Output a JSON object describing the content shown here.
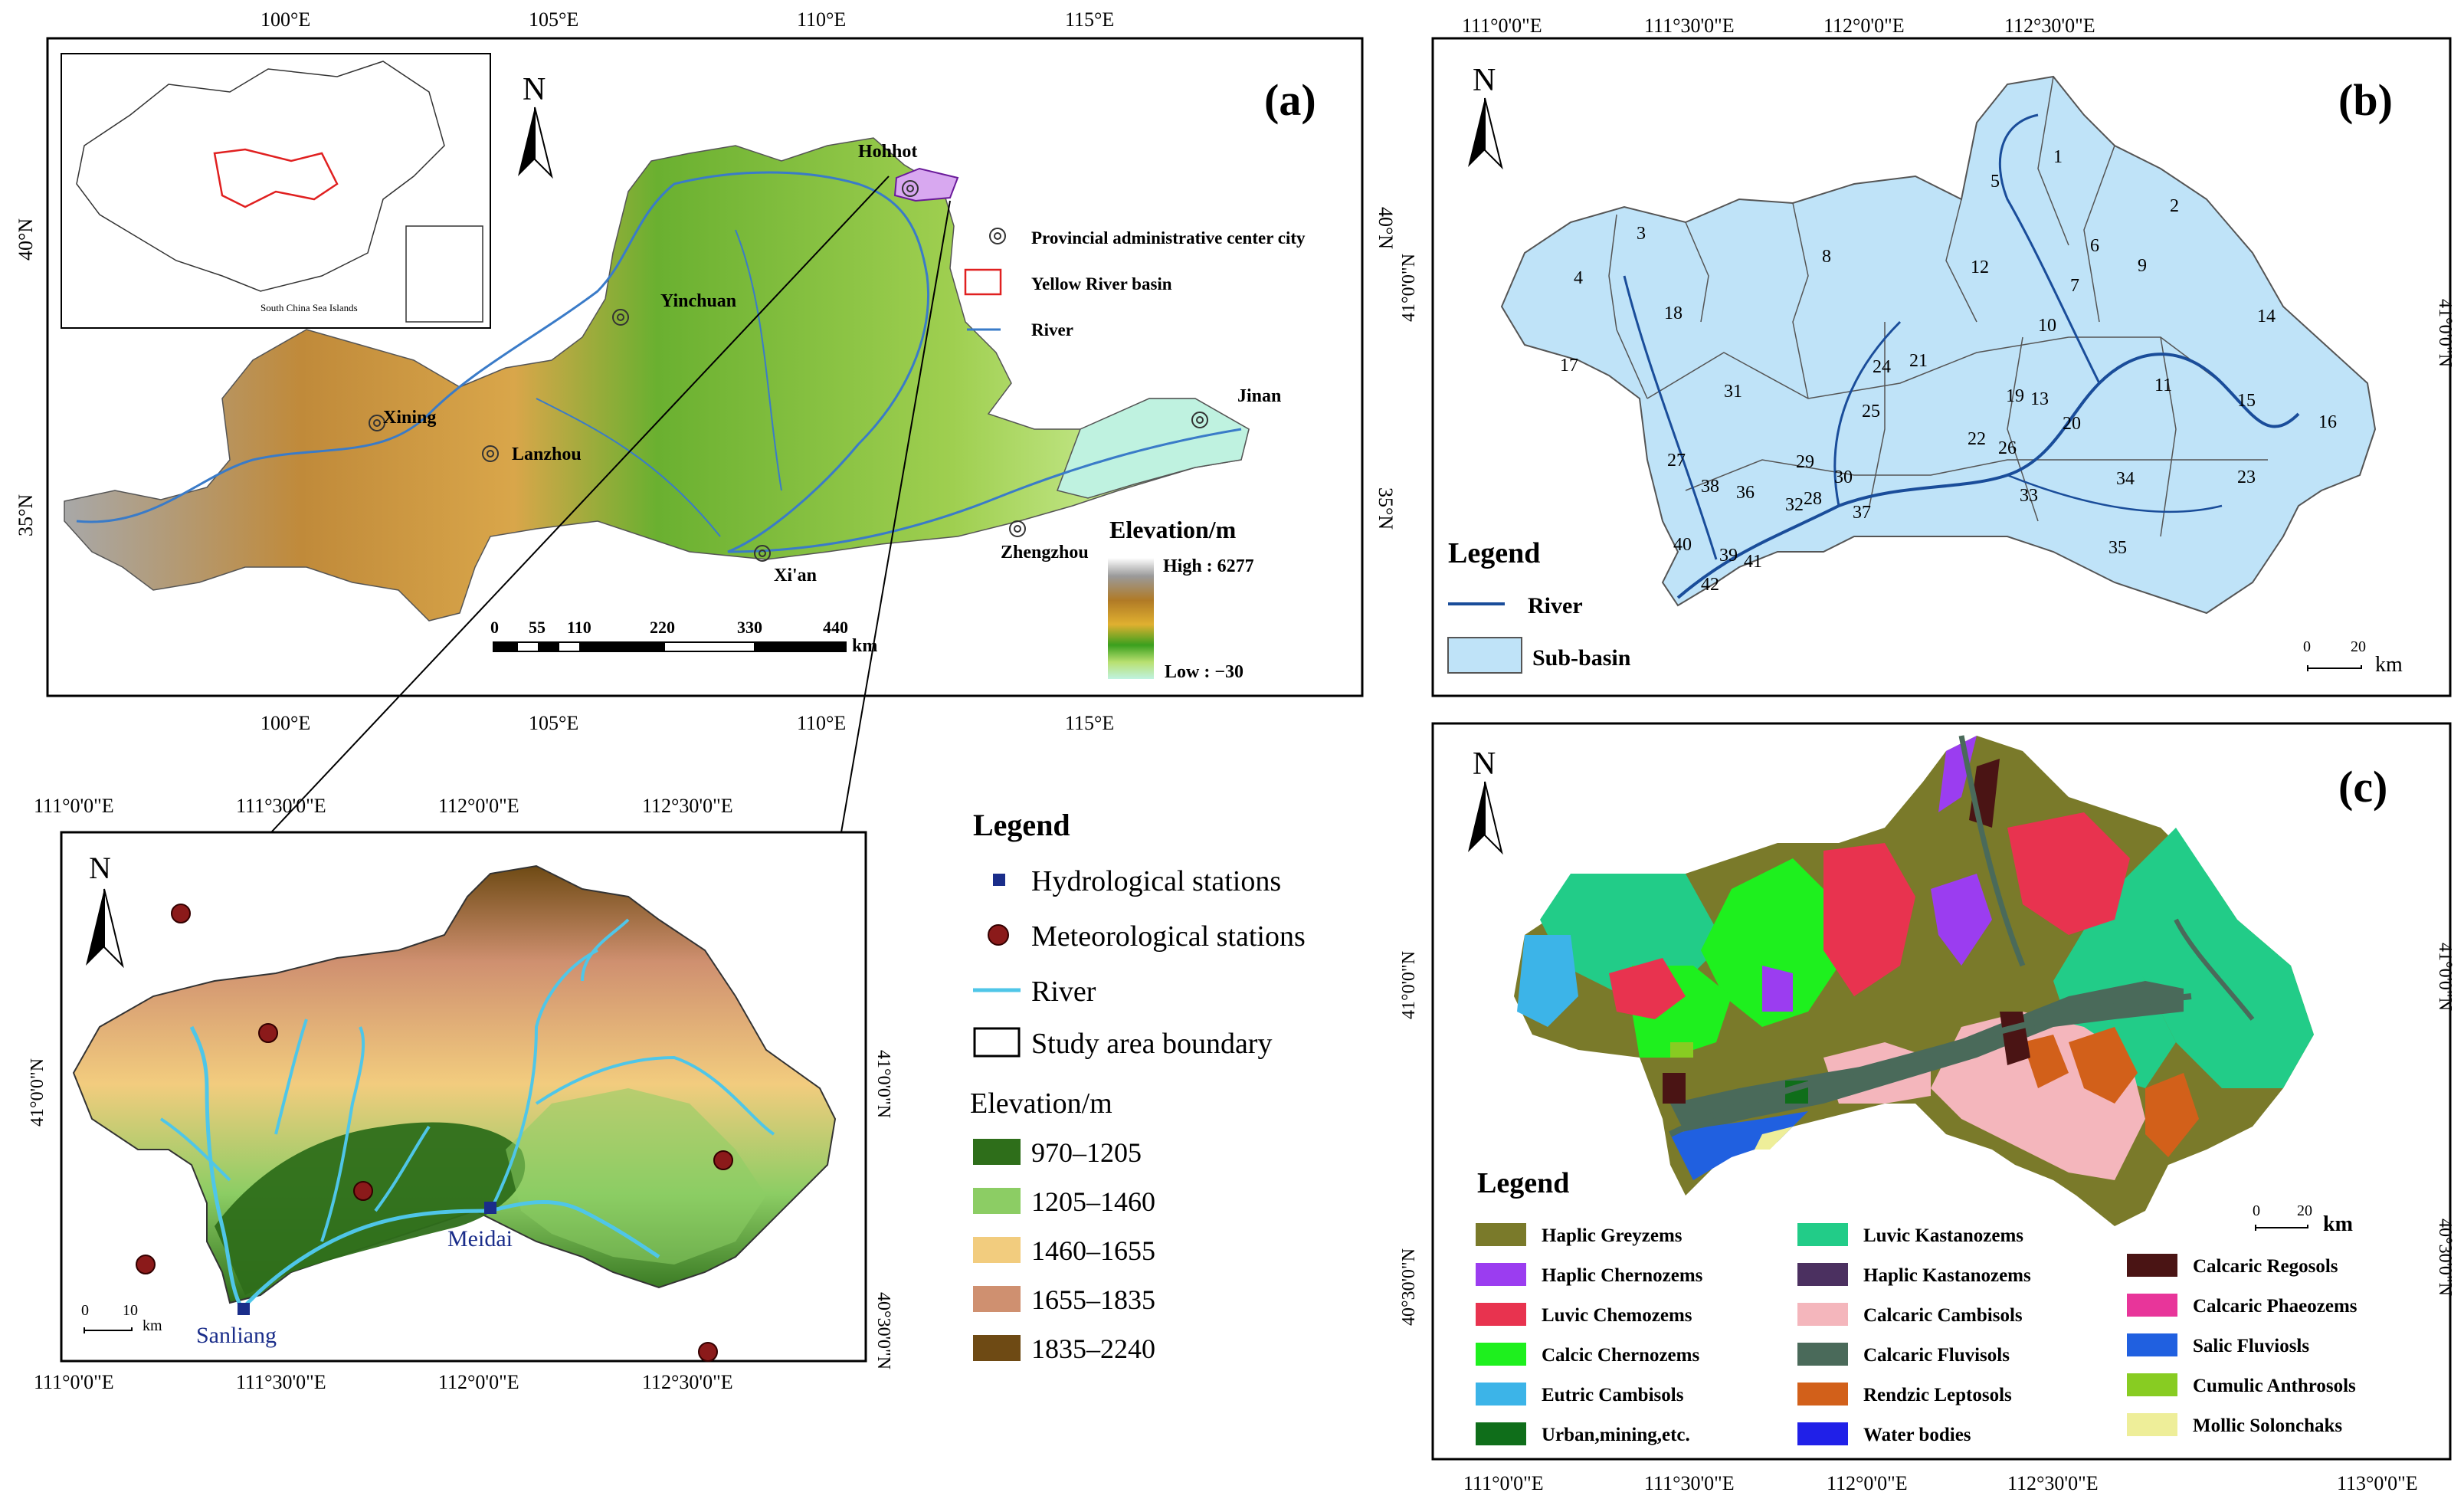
{
  "panel_a": {
    "label": "(a)",
    "north": "N",
    "top_ticks": [
      "100°E",
      "105°E",
      "110°E",
      "115°E"
    ],
    "bottom_ticks": [
      "100°E",
      "105°E",
      "110°E",
      "115°E"
    ],
    "left_ticks": [
      "40°N",
      "35°N"
    ],
    "right_ticks": [
      "40°N",
      "35°N"
    ],
    "cities": [
      "Hohhot",
      "Yinchuan",
      "Xining",
      "Lanzhou",
      "Xi'an",
      "Zhengzhou",
      "Jinan"
    ],
    "legend": {
      "provincial": "Provincial administrative center city",
      "basin": "Yellow River basin",
      "river": "River"
    },
    "inset_text": "South China Sea Islands",
    "elevation": {
      "title": "Elevation/m",
      "high": "High : 6277",
      "low": "Low : −30"
    },
    "scale": {
      "ticks": [
        "0",
        "55",
        "110",
        "220",
        "330",
        "440"
      ],
      "unit": "km"
    }
  },
  "panel_b": {
    "label": "(b)",
    "north": "N",
    "top_ticks": [
      "111°0'0\"E",
      "111°30'0\"E",
      "112°0'0\"E",
      "112°30'0\"E"
    ],
    "right_ticks": [
      "41°0'0\"N"
    ],
    "legend_title": "Legend",
    "legend_river": "River",
    "legend_subbasin": "Sub-basin",
    "scale": {
      "zero": "0",
      "twenty": "20",
      "unit": "km"
    },
    "subbasins": [
      "1",
      "2",
      "3",
      "4",
      "5",
      "6",
      "7",
      "8",
      "9",
      "10",
      "11",
      "12",
      "13",
      "14",
      "15",
      "16",
      "17",
      "18",
      "19",
      "20",
      "21",
      "22",
      "23",
      "24",
      "25",
      "26",
      "27",
      "28",
      "29",
      "30",
      "31",
      "32",
      "33",
      "34",
      "35",
      "36",
      "37",
      "38",
      "39",
      "40",
      "41",
      "42"
    ]
  },
  "panel_c": {
    "label": "(c)",
    "north": "N",
    "bottom_ticks": [
      "111°0'0\"E",
      "111°30'0\"E",
      "112°0'0\"E",
      "112°30'0\"E",
      "113°0'0\"E"
    ],
    "left_ticks": [
      "41°0'0\"N",
      "40°30'0\"N"
    ],
    "right_ticks": [
      "41°0'0\"N",
      "40°30'0\"N"
    ],
    "legend_title": "Legend",
    "scale": {
      "zero": "0",
      "twenty": "20",
      "unit": "km"
    },
    "soils": [
      {
        "name": "Haplic Greyzems",
        "color": "#7a7a2a"
      },
      {
        "name": "Haplic Chernozems",
        "color": "#9b3df0"
      },
      {
        "name": "Luvic Chemozems",
        "color": "#e8334f"
      },
      {
        "name": "Calcic Chernozems",
        "color": "#1ef01e"
      },
      {
        "name": "Eutric Cambisols",
        "color": "#3cb4e8"
      },
      {
        "name": "Urban,mining,etc.",
        "color": "#0f6e1a"
      },
      {
        "name": "Luvic Kastanozems",
        "color": "#22cc88"
      },
      {
        "name": "Haplic Kastanozems",
        "color": "#4b3060"
      },
      {
        "name": "Calcaric Cambisols",
        "color": "#f4b6bc"
      },
      {
        "name": "Calcaric Fluvisols",
        "color": "#4a6a5a"
      },
      {
        "name": "Rendzic Leptosols",
        "color": "#d2601a"
      },
      {
        "name": "Water bodies",
        "color": "#2020e8"
      },
      {
        "name": "Calcaric Regosols",
        "color": "#4a1414"
      },
      {
        "name": "Calcaric Phaeozems",
        "color": "#e8359a"
      },
      {
        "name": "Salic Fluviosls",
        "color": "#2060e0"
      },
      {
        "name": "Cumulic Anthrosols",
        "color": "#88cc22"
      },
      {
        "name": "Mollic Solonchaks",
        "color": "#eeee99"
      }
    ]
  },
  "panel_d": {
    "north": "N",
    "top_ticks": [
      "111°0'0\"E",
      "111°30'0\"E",
      "112°0'0\"E",
      "112°30'0\"E"
    ],
    "bottom_ticks": [
      "111°0'0\"E",
      "111°30'0\"E",
      "112°0'0\"E",
      "112°30'0\"E"
    ],
    "left_ticks": [
      "41°0'0\"N"
    ],
    "right_ticks": [
      "41°0'0\"N",
      "40°30'0\"N"
    ],
    "stations": [
      "Sanliang",
      "Meidai"
    ],
    "scale": {
      "zero": "0",
      "ten": "10",
      "unit": "km"
    }
  },
  "main_legend": {
    "title": "Legend",
    "hydro": "Hydrological stations",
    "meteo": "Meteorological stations",
    "river": "River",
    "boundary": "Study area boundary",
    "elev_title": "Elevation/m",
    "classes": [
      {
        "label": "970–1205",
        "color": "#2e6e1a"
      },
      {
        "label": "1205–1460",
        "color": "#8ccd64"
      },
      {
        "label": "1460–1655",
        "color": "#f2cc7e"
      },
      {
        "label": "1655–1835",
        "color": "#cf9070"
      },
      {
        "label": "1835–2240",
        "color": "#6e4a14"
      }
    ]
  }
}
